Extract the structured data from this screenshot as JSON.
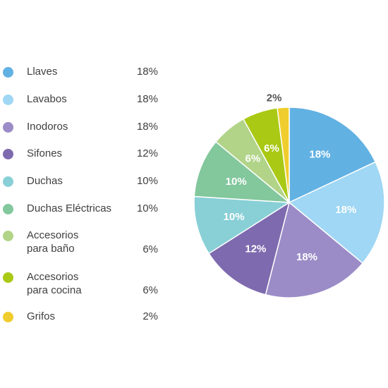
{
  "chart_data": {
    "type": "pie",
    "categories": [
      "Llaves",
      "Lavabos",
      "Inodoros",
      "Sifones",
      "Duchas",
      "Duchas Eléctricas",
      "Accesorios\npara baño",
      "Accesorios\npara cocina",
      "Grifos"
    ],
    "values": [
      18,
      18,
      18,
      12,
      10,
      10,
      6,
      6,
      2
    ],
    "value_labels": [
      "18%",
      "18%",
      "18%",
      "12%",
      "10%",
      "10%",
      "6%",
      "6%",
      "2%"
    ],
    "colors": [
      "#62b1e3",
      "#9fd7f4",
      "#9b8cc7",
      "#7e6aae",
      "#88cfd6",
      "#83c79d",
      "#b1d488",
      "#a9c915",
      "#f0cd2e"
    ],
    "legend_position": "left",
    "title": ""
  }
}
